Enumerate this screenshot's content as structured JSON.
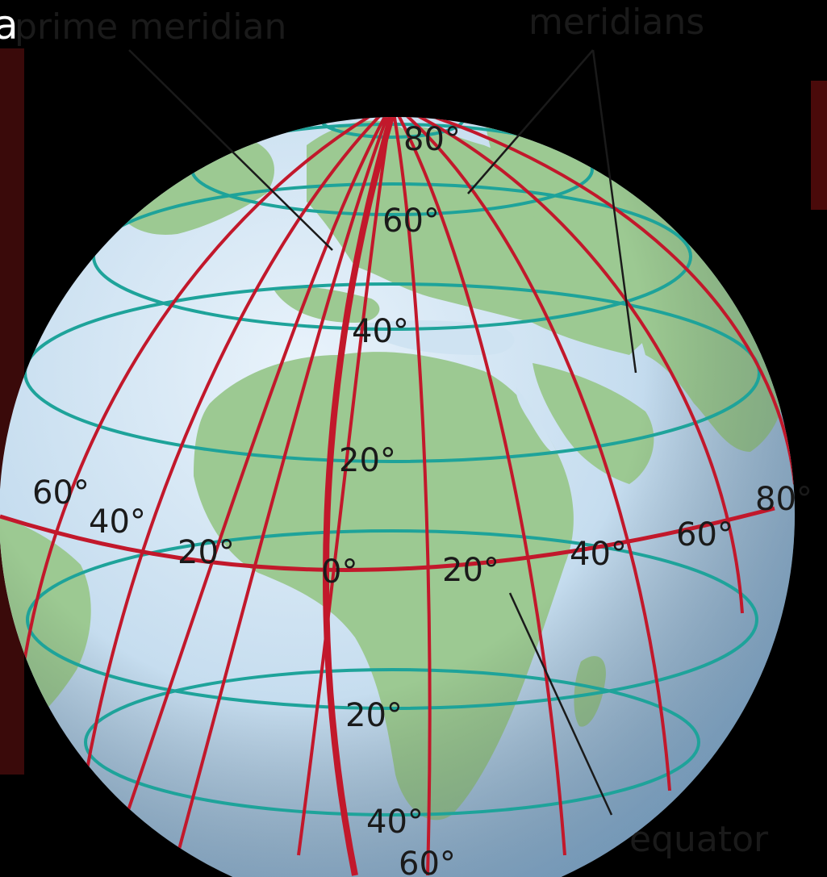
{
  "title_fragment": "a",
  "callouts": {
    "prime_meridian": "prime meridian",
    "meridians": "meridians",
    "equator": "equator"
  },
  "latitude_labels": {
    "n80": "80°",
    "n60": "60°",
    "n40": "40°",
    "n20": "20°",
    "s20": "20°",
    "s40": "40°",
    "s60": "60°"
  },
  "longitude_labels": {
    "w60": "60°",
    "w40": "40°",
    "w20": "20°",
    "zero": "0°",
    "e20": "20°",
    "e40": "40°",
    "e60": "60°",
    "e80": "80°"
  },
  "colors": {
    "background": "#000000",
    "ocean": "#cfe3f2",
    "land": "#9cc992",
    "meridian": "#c2182b",
    "parallel": "#1ea39a",
    "text": "#1a1a1a",
    "leader_line": "#1a1a1a"
  }
}
